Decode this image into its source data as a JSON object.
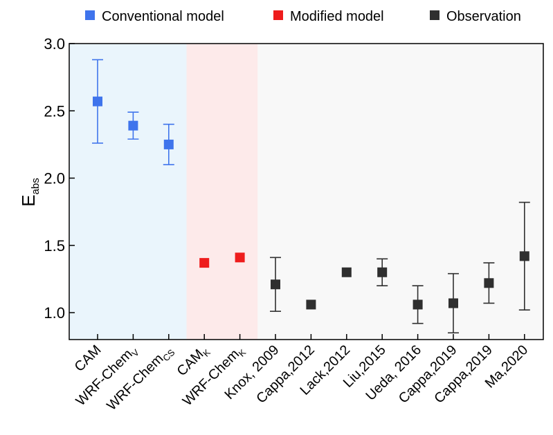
{
  "chart_data": {
    "type": "scatter",
    "title": "",
    "xlabel": "",
    "ylabel": "E",
    "ylabel_subscript": "abs",
    "ylim": [
      0.8,
      3.0
    ],
    "yticks": [
      "1.0",
      "1.5",
      "2.0",
      "2.5",
      "3.0"
    ],
    "grid": false,
    "legend_position": "top",
    "groups": [
      {
        "name": "Conventional model",
        "color": "#3f74ec",
        "band_color": "#eaf5fc",
        "start": 0,
        "end": 2
      },
      {
        "name": "Modified model",
        "color": "#ee1c1c",
        "band_color": "#fdeaea",
        "start": 3,
        "end": 4
      },
      {
        "name": "Observation",
        "color": "#2f2f2f",
        "band_color": "#f8f8f8",
        "start": 5,
        "end": 12
      }
    ],
    "categories": [
      {
        "label": "CAM",
        "sub": ""
      },
      {
        "label": "WRF-Chem",
        "sub": "V"
      },
      {
        "label": "WRF-Chem",
        "sub": "CS"
      },
      {
        "label": "CAM",
        "sub": "K"
      },
      {
        "label": "WRF-Chem",
        "sub": "K"
      },
      {
        "label": "Knox, 2009",
        "sub": ""
      },
      {
        "label": "Cappa,2012",
        "sub": ""
      },
      {
        "label": "Lack,2012",
        "sub": ""
      },
      {
        "label": "Liu,2015",
        "sub": ""
      },
      {
        "label": "Ueda, 2016",
        "sub": ""
      },
      {
        "label": "Cappa,2019",
        "sub": ""
      },
      {
        "label": "Cappa,2019",
        "sub": ""
      },
      {
        "label": "Ma,2020",
        "sub": ""
      }
    ],
    "values": [
      2.57,
      2.39,
      2.25,
      1.37,
      1.41,
      1.21,
      1.06,
      1.3,
      1.3,
      1.06,
      1.07,
      1.22,
      1.42
    ],
    "error_low": [
      2.26,
      2.29,
      2.1,
      null,
      null,
      1.01,
      null,
      null,
      1.2,
      0.92,
      0.85,
      1.07,
      1.02
    ],
    "error_high": [
      2.88,
      2.49,
      2.4,
      null,
      null,
      1.41,
      null,
      null,
      1.4,
      1.2,
      1.29,
      1.37,
      1.82
    ]
  }
}
